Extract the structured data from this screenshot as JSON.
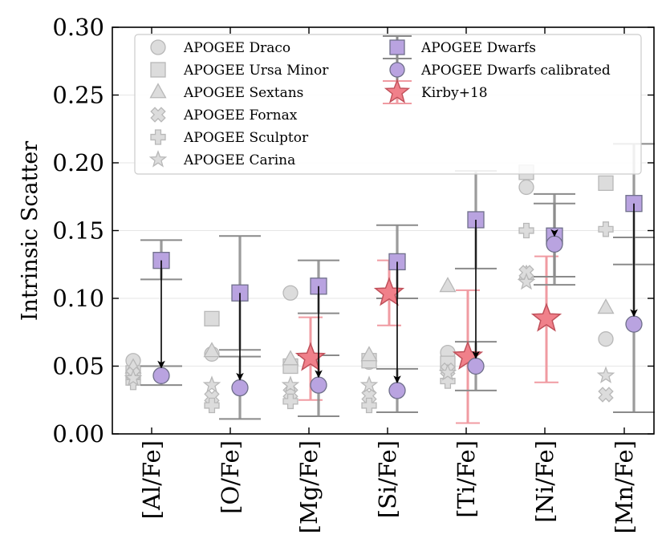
{
  "chart_data": {
    "type": "scatter",
    "title": "",
    "xlabel": "",
    "ylabel": "Intrinsic Scatter",
    "ylim": [
      0,
      0.3
    ],
    "y_ticks": [
      "0.00",
      "0.05",
      "0.10",
      "0.15",
      "0.20",
      "0.25",
      "0.30"
    ],
    "y_tick_values": [
      0,
      0.05,
      0.1,
      0.15,
      0.2,
      0.25,
      0.3
    ],
    "categories": [
      "[Al/Fe]",
      "[O/Fe]",
      "[Mg/Fe]",
      "[Si/Fe]",
      "[Ti/Fe]",
      "[Ni/Fe]",
      "[Mn/Fe]"
    ],
    "grid": "horizontal",
    "legend_position": "top",
    "series": [
      {
        "name": "APOGEE Draco",
        "marker": "circle",
        "color": "#dcdcdc",
        "values": [
          0.054,
          0.059,
          0.104,
          0.053,
          0.06,
          0.182,
          0.07
        ]
      },
      {
        "name": "APOGEE Ursa Minor",
        "marker": "square",
        "color": "#dcdcdc",
        "values": [
          0.045,
          0.085,
          0.05,
          0.054,
          0.052,
          0.193,
          0.185
        ]
      },
      {
        "name": "APOGEE Sextans",
        "marker": "triangle",
        "color": "#dcdcdc",
        "values": [
          0.049,
          0.061,
          0.055,
          0.058,
          0.109,
          0.118,
          0.093
        ]
      },
      {
        "name": "APOGEE Fornax",
        "marker": "x",
        "color": "#dcdcdc",
        "values": [
          0.044,
          0.027,
          0.03,
          0.028,
          0.047,
          0.119,
          0.029
        ]
      },
      {
        "name": "APOGEE Sculptor",
        "marker": "plus",
        "color": "#dcdcdc",
        "values": [
          0.038,
          0.021,
          0.024,
          0.021,
          0.039,
          0.15,
          0.151
        ]
      },
      {
        "name": "APOGEE Carina",
        "marker": "star",
        "color": "#dcdcdc",
        "values": [
          0.041,
          0.036,
          0.036,
          0.036,
          0.045,
          0.112,
          0.043
        ]
      },
      {
        "name": "APOGEE Dwarfs",
        "marker": "square",
        "color": "#b9a3e0",
        "values": [
          0.128,
          0.104,
          0.109,
          0.127,
          0.158,
          0.146,
          0.17
        ],
        "err_low": [
          0.114,
          0.062,
          0.089,
          0.1,
          0.122,
          0.116,
          0.125
        ],
        "err_high": [
          0.143,
          0.146,
          0.128,
          0.154,
          0.194,
          0.177,
          0.214
        ]
      },
      {
        "name": "APOGEE Dwarfs calibrated",
        "marker": "circle",
        "color": "#b9a3e0",
        "values": [
          0.043,
          0.034,
          0.036,
          0.032,
          0.05,
          0.14,
          0.081
        ],
        "err_low": [
          0.036,
          0.011,
          0.013,
          0.016,
          0.032,
          0.11,
          0.016
        ],
        "err_high": [
          0.05,
          0.057,
          0.058,
          0.048,
          0.068,
          0.17,
          0.145
        ]
      },
      {
        "name": "Kirby+18",
        "marker": "star",
        "color": "#f0808a",
        "values": [
          null,
          null,
          0.056,
          0.104,
          0.057,
          0.085,
          null
        ],
        "err_low": [
          null,
          null,
          0.025,
          0.08,
          0.008,
          0.038,
          null
        ],
        "err_high": [
          null,
          null,
          0.086,
          0.128,
          0.106,
          0.131,
          null
        ]
      }
    ]
  },
  "colors": {
    "gray_marker_fill": "#dcdcdc",
    "gray_marker_edge": "#b8b8b8",
    "dwarf_fill": "#b9a3e0",
    "dwarf_edge": "#6f6f8a",
    "errorbar": "#8a8a8a",
    "kirby_fill": "#f0808a",
    "kirby_edge": "#c0505a",
    "kirby_err": "#f09ba2",
    "arrow": "#000000"
  }
}
